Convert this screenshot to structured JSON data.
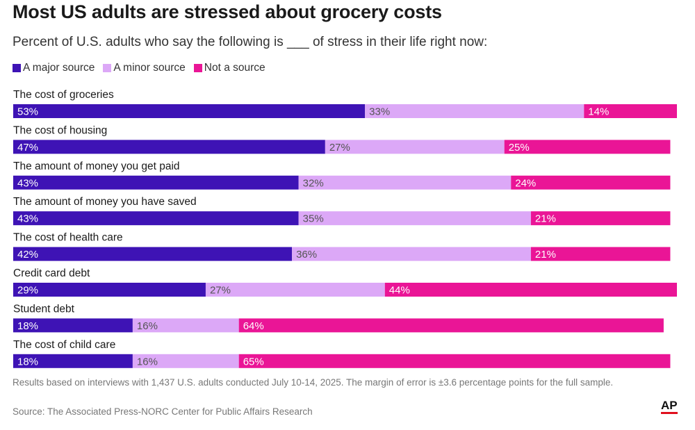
{
  "header": {
    "title": "Most US adults are stressed about grocery costs",
    "subtitle": "Percent of U.S. adults who say the following is ___ of stress in their life right now:"
  },
  "legend": [
    {
      "label": "A major source",
      "color": "#3e13b5"
    },
    {
      "label": "A minor source",
      "color": "#dca8f7"
    },
    {
      "label": "Not a source",
      "color": "#ea1596"
    }
  ],
  "chart_data": {
    "type": "bar",
    "orientation": "horizontal",
    "stacked": true,
    "title": "Most US adults are stressed about grocery costs",
    "categories": [
      "The cost of groceries",
      "The cost of housing",
      "The amount of money you get paid",
      "The amount of money you have saved",
      "The cost of health care",
      "Credit card debt",
      "Student debt",
      "The cost of child care"
    ],
    "series": [
      {
        "name": "A major source",
        "values": [
          53,
          47,
          43,
          43,
          42,
          29,
          18,
          18
        ]
      },
      {
        "name": "A minor source",
        "values": [
          33,
          27,
          32,
          35,
          36,
          27,
          16,
          16
        ]
      },
      {
        "name": "Not a source",
        "values": [
          14,
          25,
          24,
          21,
          21,
          44,
          64,
          65
        ]
      }
    ],
    "value_suffix": "%",
    "xlim": [
      0,
      100
    ],
    "legend_position": "top-left"
  },
  "footer": {
    "note": "Results based on interviews with 1,437 U.S. adults conducted July 10-14, 2025. The margin of error is ±3.6 percentage points for the full sample.",
    "source": "Source: The Associated Press-NORC Center for Public Affairs Research",
    "logo_text": "AP"
  }
}
